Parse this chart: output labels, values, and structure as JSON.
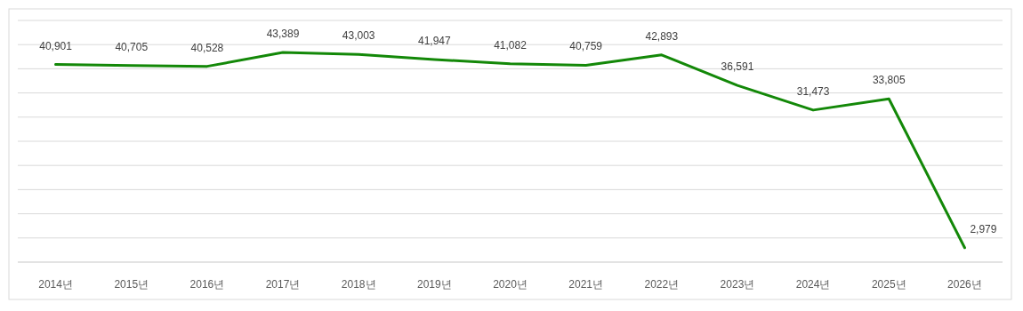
{
  "chart_data": {
    "type": "line",
    "categories": [
      "2014년",
      "2015년",
      "2016년",
      "2017년",
      "2018년",
      "2019년",
      "2020년",
      "2021년",
      "2022년",
      "2023년",
      "2024년",
      "2025년",
      "2026년"
    ],
    "values": [
      40901,
      40705,
      40528,
      43389,
      43003,
      41947,
      41082,
      40759,
      42893,
      36591,
      31473,
      33805,
      2979
    ],
    "value_labels": [
      "40,901",
      "40,705",
      "40,528",
      "43,389",
      "43,003",
      "41,947",
      "41,082",
      "40,759",
      "42,893",
      "36,591",
      "31,473",
      "33,805",
      "2,979"
    ],
    "color": "#138808",
    "grid": "y",
    "marker": "none",
    "line_style": "solid",
    "tick_labels": "x"
  }
}
